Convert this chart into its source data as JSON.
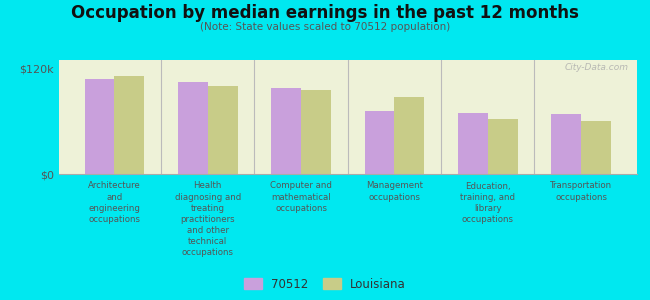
{
  "title": "Occupation by median earnings in the past 12 months",
  "subtitle": "(Note: State values scaled to 70512 population)",
  "background_color": "#00e8f0",
  "plot_bg_color": "#eef2d8",
  "categories": [
    "Architecture\nand\nengineering\noccupations",
    "Health\ndiagnosing and\ntreating\npractitioners\nand other\ntechnical\noccupations",
    "Computer and\nmathematical\noccupations",
    "Management\noccupations",
    "Education,\ntraining, and\nlibrary\noccupations",
    "Transportation\noccupations"
  ],
  "values_70512": [
    108000,
    105000,
    98000,
    72000,
    70000,
    68000
  ],
  "values_louisiana": [
    112000,
    100000,
    96000,
    88000,
    63000,
    60000
  ],
  "color_70512": "#c9a0dc",
  "color_louisiana": "#c8cc88",
  "ylim": [
    0,
    130000
  ],
  "yticks": [
    0,
    120000
  ],
  "ytick_labels": [
    "$0",
    "$120k"
  ],
  "legend_label_70512": "70512",
  "legend_label_louisiana": "Louisiana",
  "watermark": "City-Data.com"
}
